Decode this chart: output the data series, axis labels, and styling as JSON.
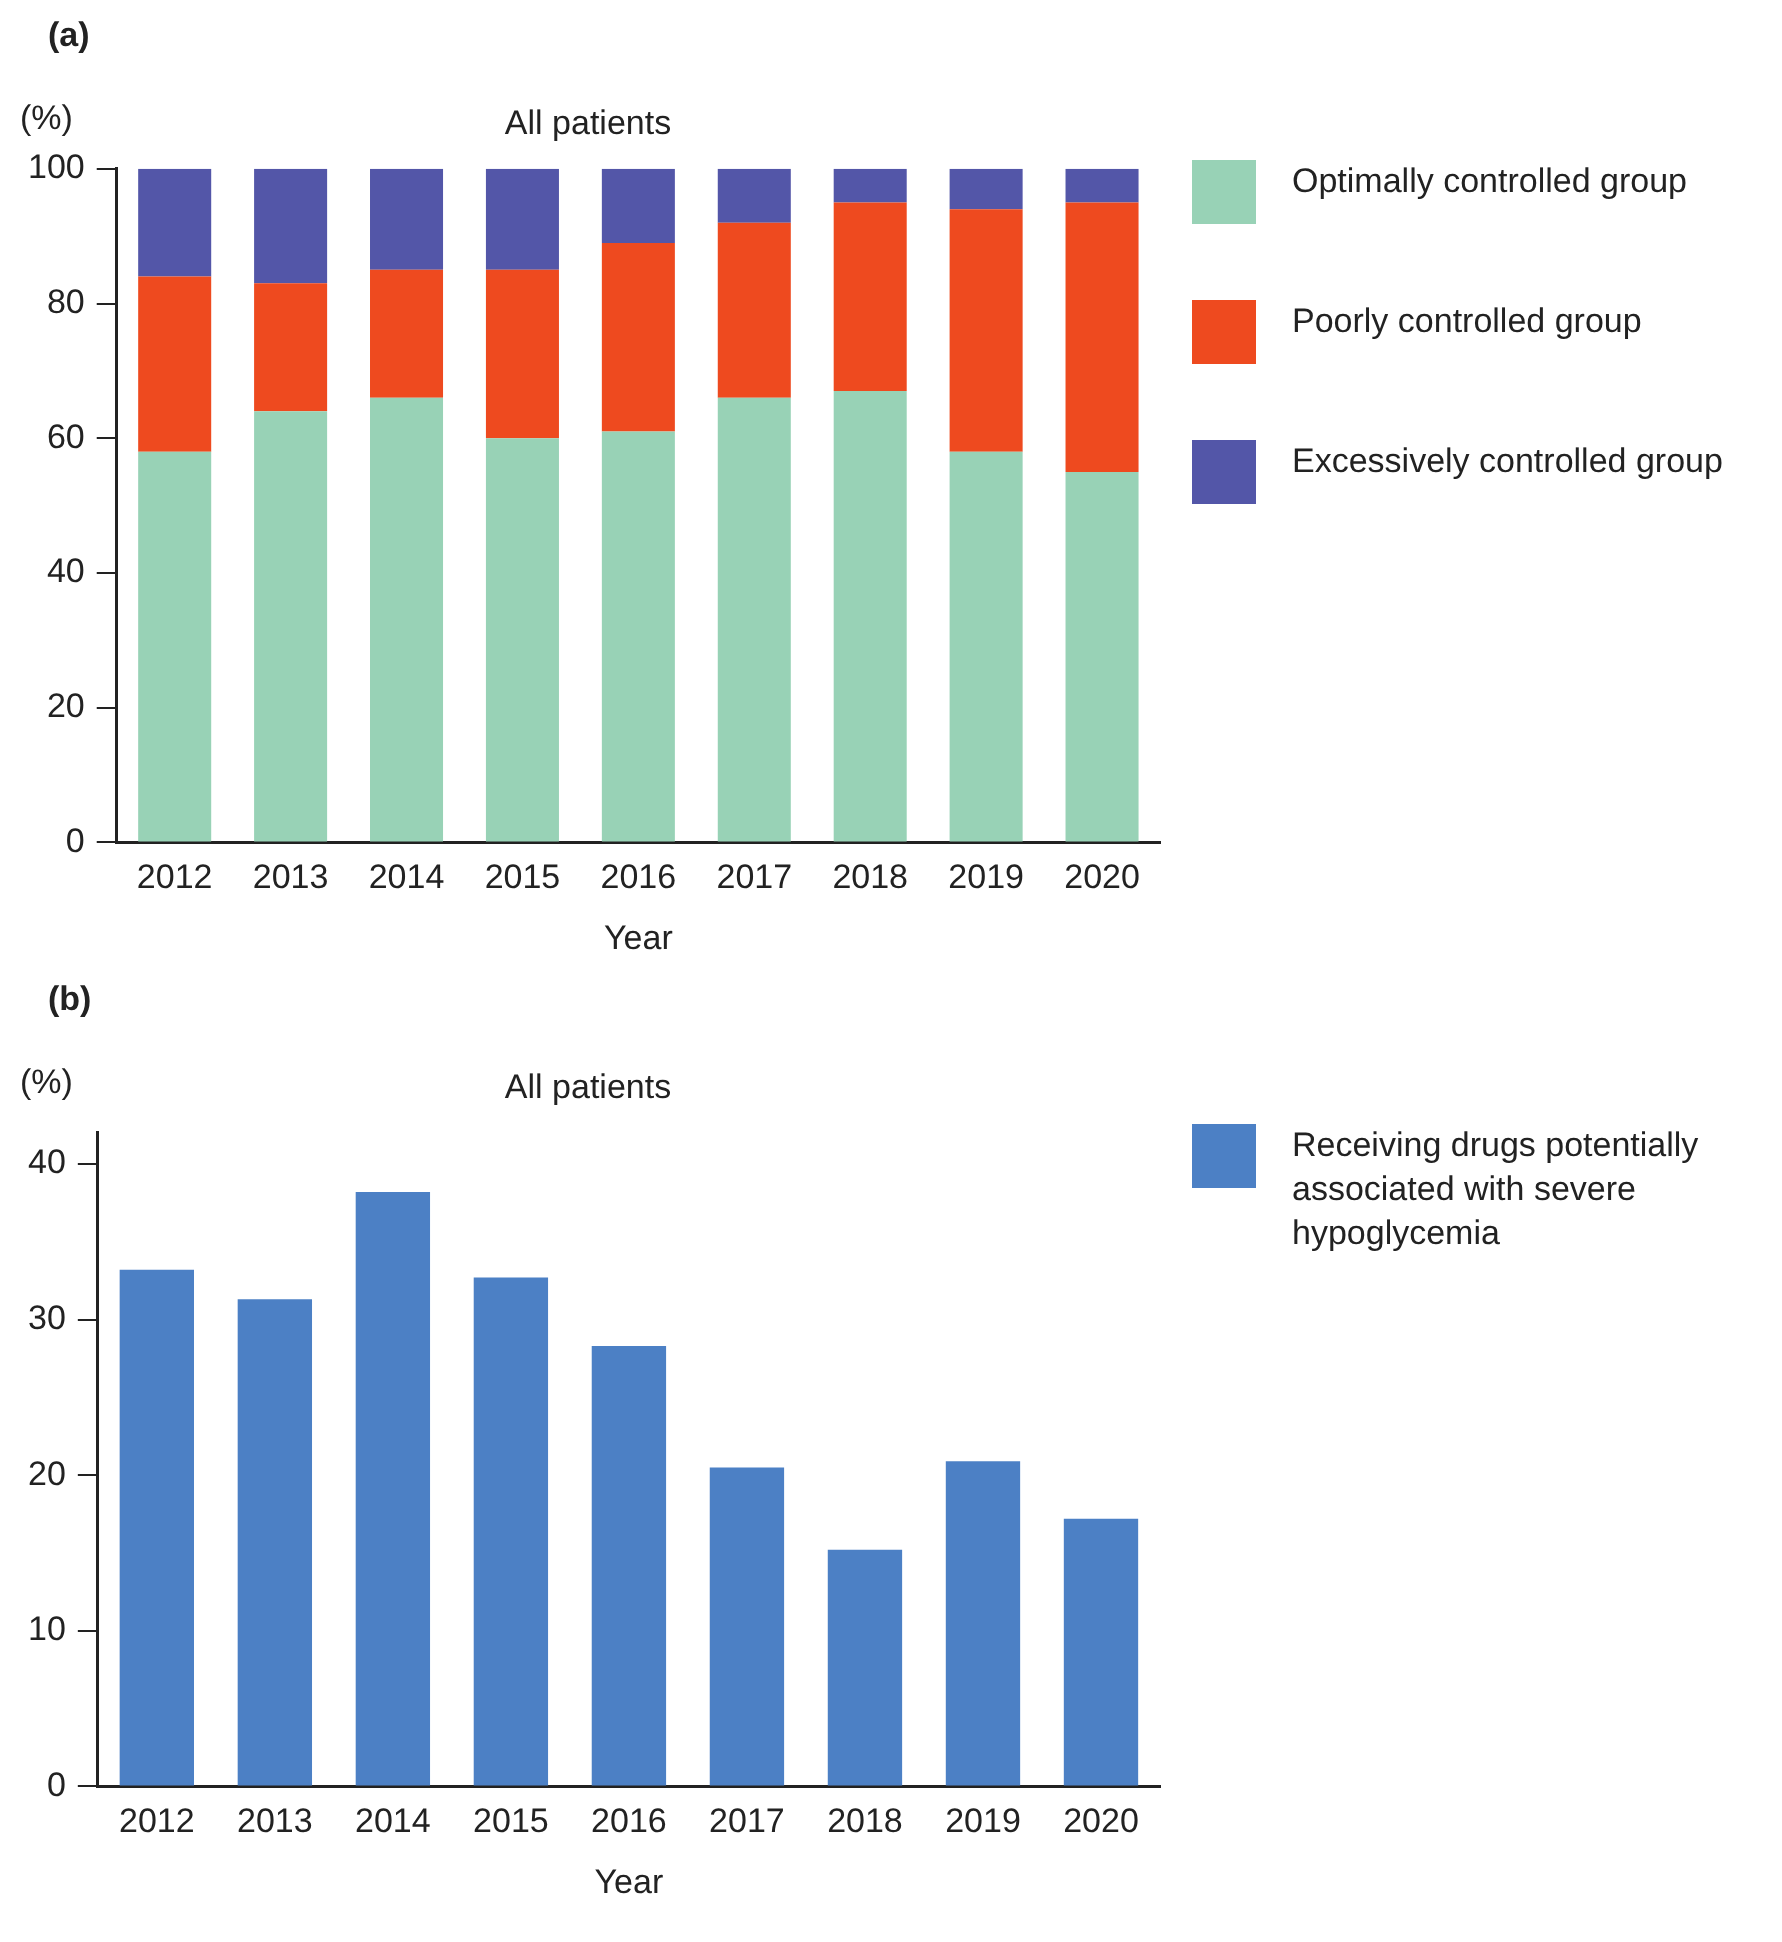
{
  "chart_data": [
    {
      "type": "bar",
      "title": "All patients",
      "xlabel": "Year",
      "ylabel": "(%)",
      "annotations": [
        "(a)"
      ],
      "categories": [
        "2012",
        "2013",
        "2014",
        "2015",
        "2016",
        "2017",
        "2018",
        "2019",
        "2020"
      ],
      "stacked": true,
      "series": [
        {
          "name": "Optimally controlled group",
          "color": "#98d2b6",
          "values": [
            58,
            64,
            66,
            60,
            61,
            66,
            67,
            58,
            55
          ]
        },
        {
          "name": "Poorly controlled group",
          "color": "#ee4a1f",
          "values": [
            26,
            19,
            19,
            25,
            28,
            26,
            28,
            36,
            40
          ]
        },
        {
          "name": "Excessively controlled group",
          "color": "#5356a8",
          "values": [
            16,
            17,
            15,
            15,
            11,
            8,
            5,
            6,
            5
          ]
        }
      ],
      "ylim": [
        0,
        100
      ],
      "yticks": [
        0,
        20,
        40,
        60,
        80,
        100
      ],
      "grid": false,
      "legend": "right"
    },
    {
      "type": "bar",
      "title": "All patients",
      "xlabel": "Year",
      "ylabel": "(%)",
      "annotations": [
        "(b)"
      ],
      "categories": [
        "2012",
        "2013",
        "2014",
        "2015",
        "2016",
        "2017",
        "2018",
        "2019",
        "2020"
      ],
      "series": [
        {
          "name": "Receiving drugs potentially associated with severe hypoglycemia",
          "color": "#4c80c5",
          "values": [
            33.2,
            31.3,
            38.2,
            32.7,
            28.3,
            20.5,
            15.2,
            20.9,
            17.2
          ]
        }
      ],
      "ylim": [
        0,
        42
      ],
      "yticks": [
        0,
        10,
        20,
        30,
        40
      ],
      "grid": false,
      "legend": "right"
    }
  ]
}
